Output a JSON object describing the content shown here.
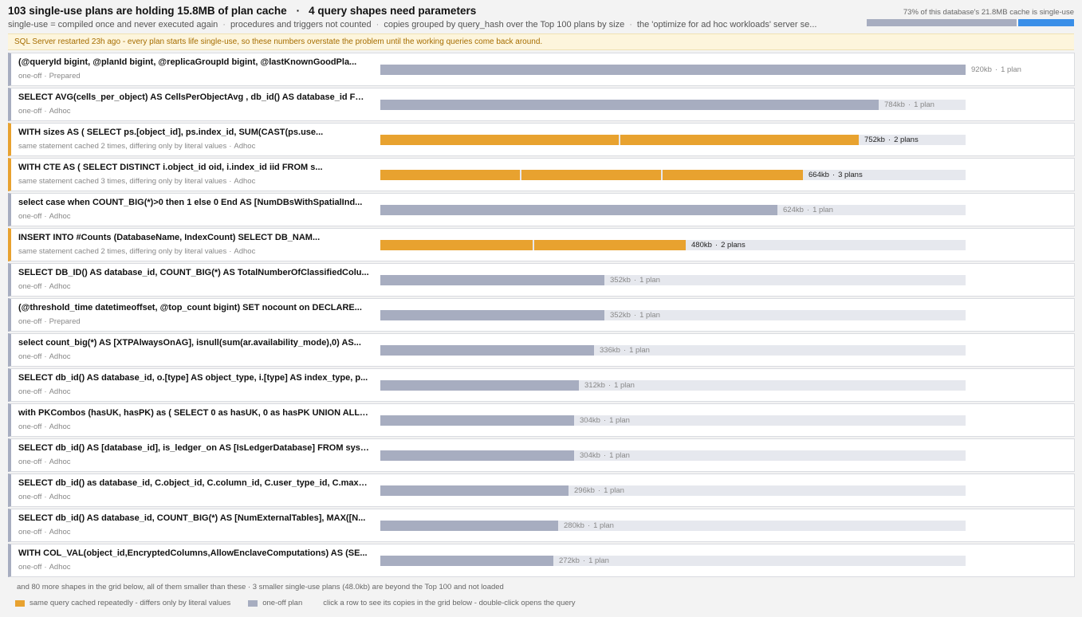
{
  "header": {
    "title_a": "103 single-use plans are holding 15.8MB of plan cache",
    "title_sep": "·",
    "title_b": "4 query shapes need parameters",
    "subtitle": [
      "single-use = compiled once and never executed again",
      "procedures and triggers not counted",
      "copies grouped by query_hash over the Top 100 plans by size",
      "the 'optimize for ad hoc workloads' server se..."
    ],
    "cache_label": "73% of this database's 21.8MB cache is single-use",
    "cache_single_fraction": 0.73
  },
  "notice": "SQL Server restarted 23h ago - every plan starts life single-use, so these numbers overstate the problem until the working queries come back around.",
  "scale_max_kb": 920,
  "rows": [
    {
      "query": "(@queryId bigint, @planId bigint, @replicaGroupId bigint, @lastKnownGoodPla...",
      "meta": "one-off",
      "type": "Prepared",
      "repeat": false,
      "size": "920kb",
      "plans": "1 plan",
      "kb": 920,
      "segments": [
        920
      ]
    },
    {
      "query": "SELECT AVG(cells_per_object) AS CellsPerObjectAvg , db_id() AS database_id FRO...",
      "meta": "one-off",
      "type": "Adhoc",
      "repeat": false,
      "size": "784kb",
      "plans": "1 plan",
      "kb": 784,
      "segments": [
        784
      ]
    },
    {
      "query": "WITH sizes AS ( SELECT ps.[object_id], ps.index_id, SUM(CAST(ps.use...",
      "meta": "same statement cached 2 times, differing only by literal values",
      "type": "Adhoc",
      "repeat": true,
      "size": "752kb",
      "plans": "2 plans",
      "kb": 752,
      "segments": [
        376,
        376
      ]
    },
    {
      "query": "WITH CTE AS ( SELECT DISTINCT i.object_id oid, i.index_id iid FROM s...",
      "meta": "same statement cached 3 times, differing only by literal values",
      "type": "Adhoc",
      "repeat": true,
      "size": "664kb",
      "plans": "3 plans",
      "kb": 664,
      "segments": [
        221,
        221,
        222
      ]
    },
    {
      "query": "select case when COUNT_BIG(*)>0 then 1 else 0 End AS [NumDBsWithSpatialInd...",
      "meta": "one-off",
      "type": "Adhoc",
      "repeat": false,
      "size": "624kb",
      "plans": "1 plan",
      "kb": 624,
      "segments": [
        624
      ]
    },
    {
      "query": "INSERT INTO #Counts (DatabaseName, IndexCount) SELECT DB_NAM...",
      "meta": "same statement cached 2 times, differing only by literal values",
      "type": "Adhoc",
      "repeat": true,
      "size": "480kb",
      "plans": "2 plans",
      "kb": 480,
      "segments": [
        240,
        240
      ]
    },
    {
      "query": "SELECT DB_ID() AS database_id, COUNT_BIG(*) AS TotalNumberOfClassifiedColu...",
      "meta": "one-off",
      "type": "Adhoc",
      "repeat": false,
      "size": "352kb",
      "plans": "1 plan",
      "kb": 352,
      "segments": [
        352
      ]
    },
    {
      "query": "(@threshold_time datetimeoffset, @top_count bigint) SET nocount on DECLARE...",
      "meta": "one-off",
      "type": "Prepared",
      "repeat": false,
      "size": "352kb",
      "plans": "1 plan",
      "kb": 352,
      "segments": [
        352
      ]
    },
    {
      "query": "select count_big(*) AS [XTPAlwaysOnAG], isnull(sum(ar.availability_mode),0) AS...",
      "meta": "one-off",
      "type": "Adhoc",
      "repeat": false,
      "size": "336kb",
      "plans": "1 plan",
      "kb": 336,
      "segments": [
        336
      ]
    },
    {
      "query": "SELECT db_id() AS database_id, o.[type] AS object_type, i.[type] AS index_type, p...",
      "meta": "one-off",
      "type": "Adhoc",
      "repeat": false,
      "size": "312kb",
      "plans": "1 plan",
      "kb": 312,
      "segments": [
        312
      ]
    },
    {
      "query": "with PKCombos (hasUK, hasPK) as ( SELECT 0 as hasUK, 0 as hasPK UNION ALL S...",
      "meta": "one-off",
      "type": "Adhoc",
      "repeat": false,
      "size": "304kb",
      "plans": "1 plan",
      "kb": 304,
      "segments": [
        304
      ]
    },
    {
      "query": "SELECT db_id() AS [database_id], is_ledger_on AS [IsLedgerDatabase] FROM sys.d...",
      "meta": "one-off",
      "type": "Adhoc",
      "repeat": false,
      "size": "304kb",
      "plans": "1 plan",
      "kb": 304,
      "segments": [
        304
      ]
    },
    {
      "query": "SELECT db_id() as database_id, C.object_id, C.column_id, C.user_type_id, C.max_le...",
      "meta": "one-off",
      "type": "Adhoc",
      "repeat": false,
      "size": "296kb",
      "plans": "1 plan",
      "kb": 296,
      "segments": [
        296
      ]
    },
    {
      "query": "SELECT db_id() AS database_id, COUNT_BIG(*) AS [NumExternalTables], MAX([N...",
      "meta": "one-off",
      "type": "Adhoc",
      "repeat": false,
      "size": "280kb",
      "plans": "1 plan",
      "kb": 280,
      "segments": [
        280
      ]
    },
    {
      "query": "WITH COL_VAL(object_id,EncryptedColumns,AllowEnclaveComputations) AS (SE...",
      "meta": "one-off",
      "type": "Adhoc",
      "repeat": false,
      "size": "272kb",
      "plans": "1 plan",
      "kb": 272,
      "segments": [
        272
      ]
    }
  ],
  "footer": {
    "more": "and 80 more shapes in the grid below, all of them smaller than these · 3 smaller single-use plans (48.0kb) are beyond the Top 100 and not loaded",
    "legend_repeat": "same query cached repeatedly - differs only by literal values",
    "legend_oneoff": "one-off plan",
    "hint": "click a row to see its copies in the grid below - double-click opens the query"
  },
  "colors": {
    "repeat": "#e8a22f",
    "one_off": "#a7adc0",
    "cache_multi": "#3a8fe8",
    "notice_text": "#a66d00"
  }
}
